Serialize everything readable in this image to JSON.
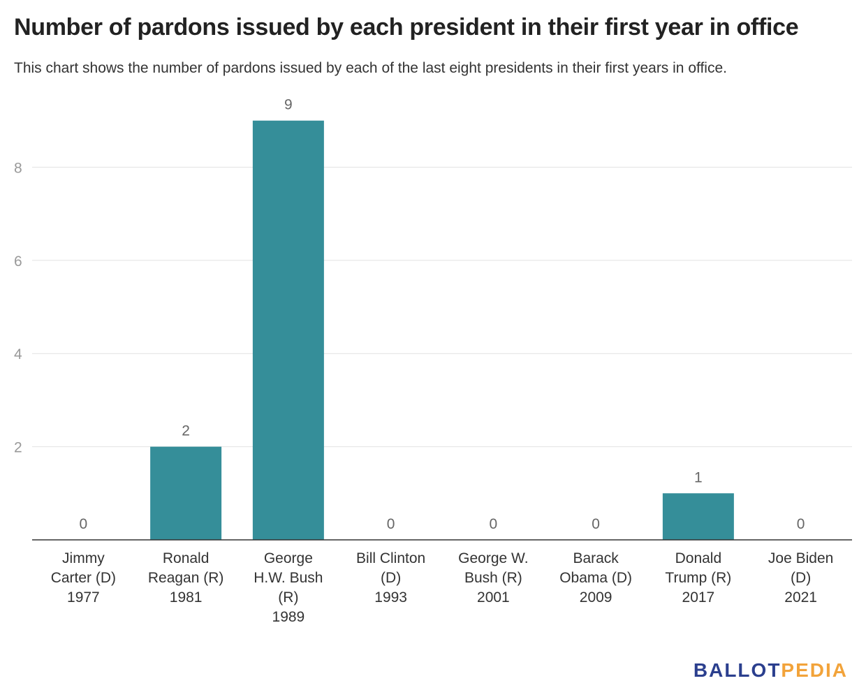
{
  "chart_data": {
    "type": "bar",
    "title": "Number of pardons issued by each president in their first year in office",
    "subtitle": "This chart shows the number of pardons issued by each of the last eight presidents in their first years in office.",
    "categories": [
      [
        "Jimmy",
        "Carter (D)",
        "1977"
      ],
      [
        "Ronald",
        "Reagan (R)",
        "1981"
      ],
      [
        "George",
        "H.W. Bush",
        "(R)",
        "1989"
      ],
      [
        "Bill Clinton",
        "(D)",
        "1993"
      ],
      [
        "George W.",
        "Bush (R)",
        "2001"
      ],
      [
        "Barack",
        "Obama (D)",
        "2009"
      ],
      [
        "Donald",
        "Trump (R)",
        "2017"
      ],
      [
        "Joe Biden",
        "(D)",
        "2021"
      ]
    ],
    "values": [
      0,
      2,
      9,
      0,
      0,
      0,
      1,
      0
    ],
    "yticks": [
      2,
      4,
      6,
      8
    ],
    "ylim": [
      0,
      9
    ],
    "grid": true,
    "bar_color": "#358e99",
    "xlabel": "",
    "ylabel": ""
  },
  "branding": {
    "logo_part1": "BALLOT",
    "logo_part2": "PEDIA"
  }
}
